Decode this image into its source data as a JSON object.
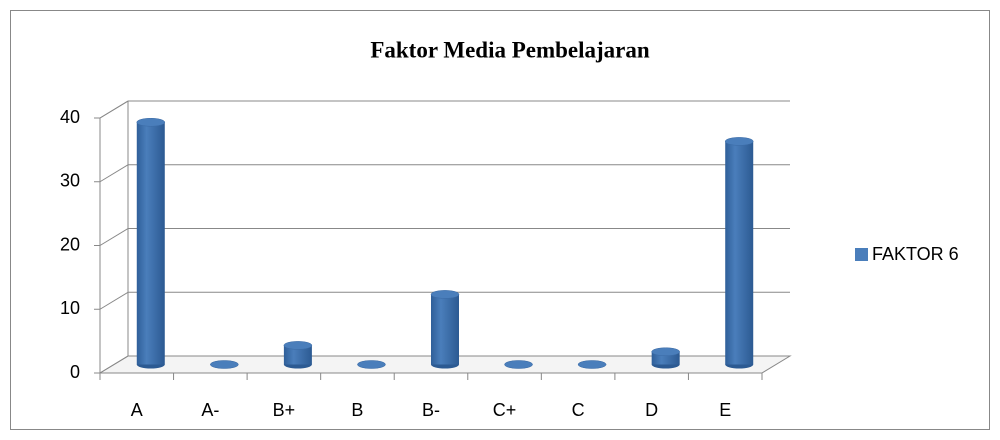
{
  "chart_data": {
    "type": "bar3d",
    "title": "Faktor Media Pembelajaran",
    "categories": [
      "A",
      "A-",
      "B+",
      "B",
      "B-",
      "C+",
      "C",
      "D",
      "E"
    ],
    "series": [
      {
        "name": "FAKTOR 6",
        "color": "#4a7ebb",
        "values": [
          38,
          0,
          3,
          0,
          11,
          0,
          0,
          2,
          35
        ]
      }
    ],
    "ylim": [
      0,
      40
    ],
    "yticks": [
      0,
      10,
      20,
      30,
      40
    ],
    "grid": true,
    "legend": "right"
  }
}
